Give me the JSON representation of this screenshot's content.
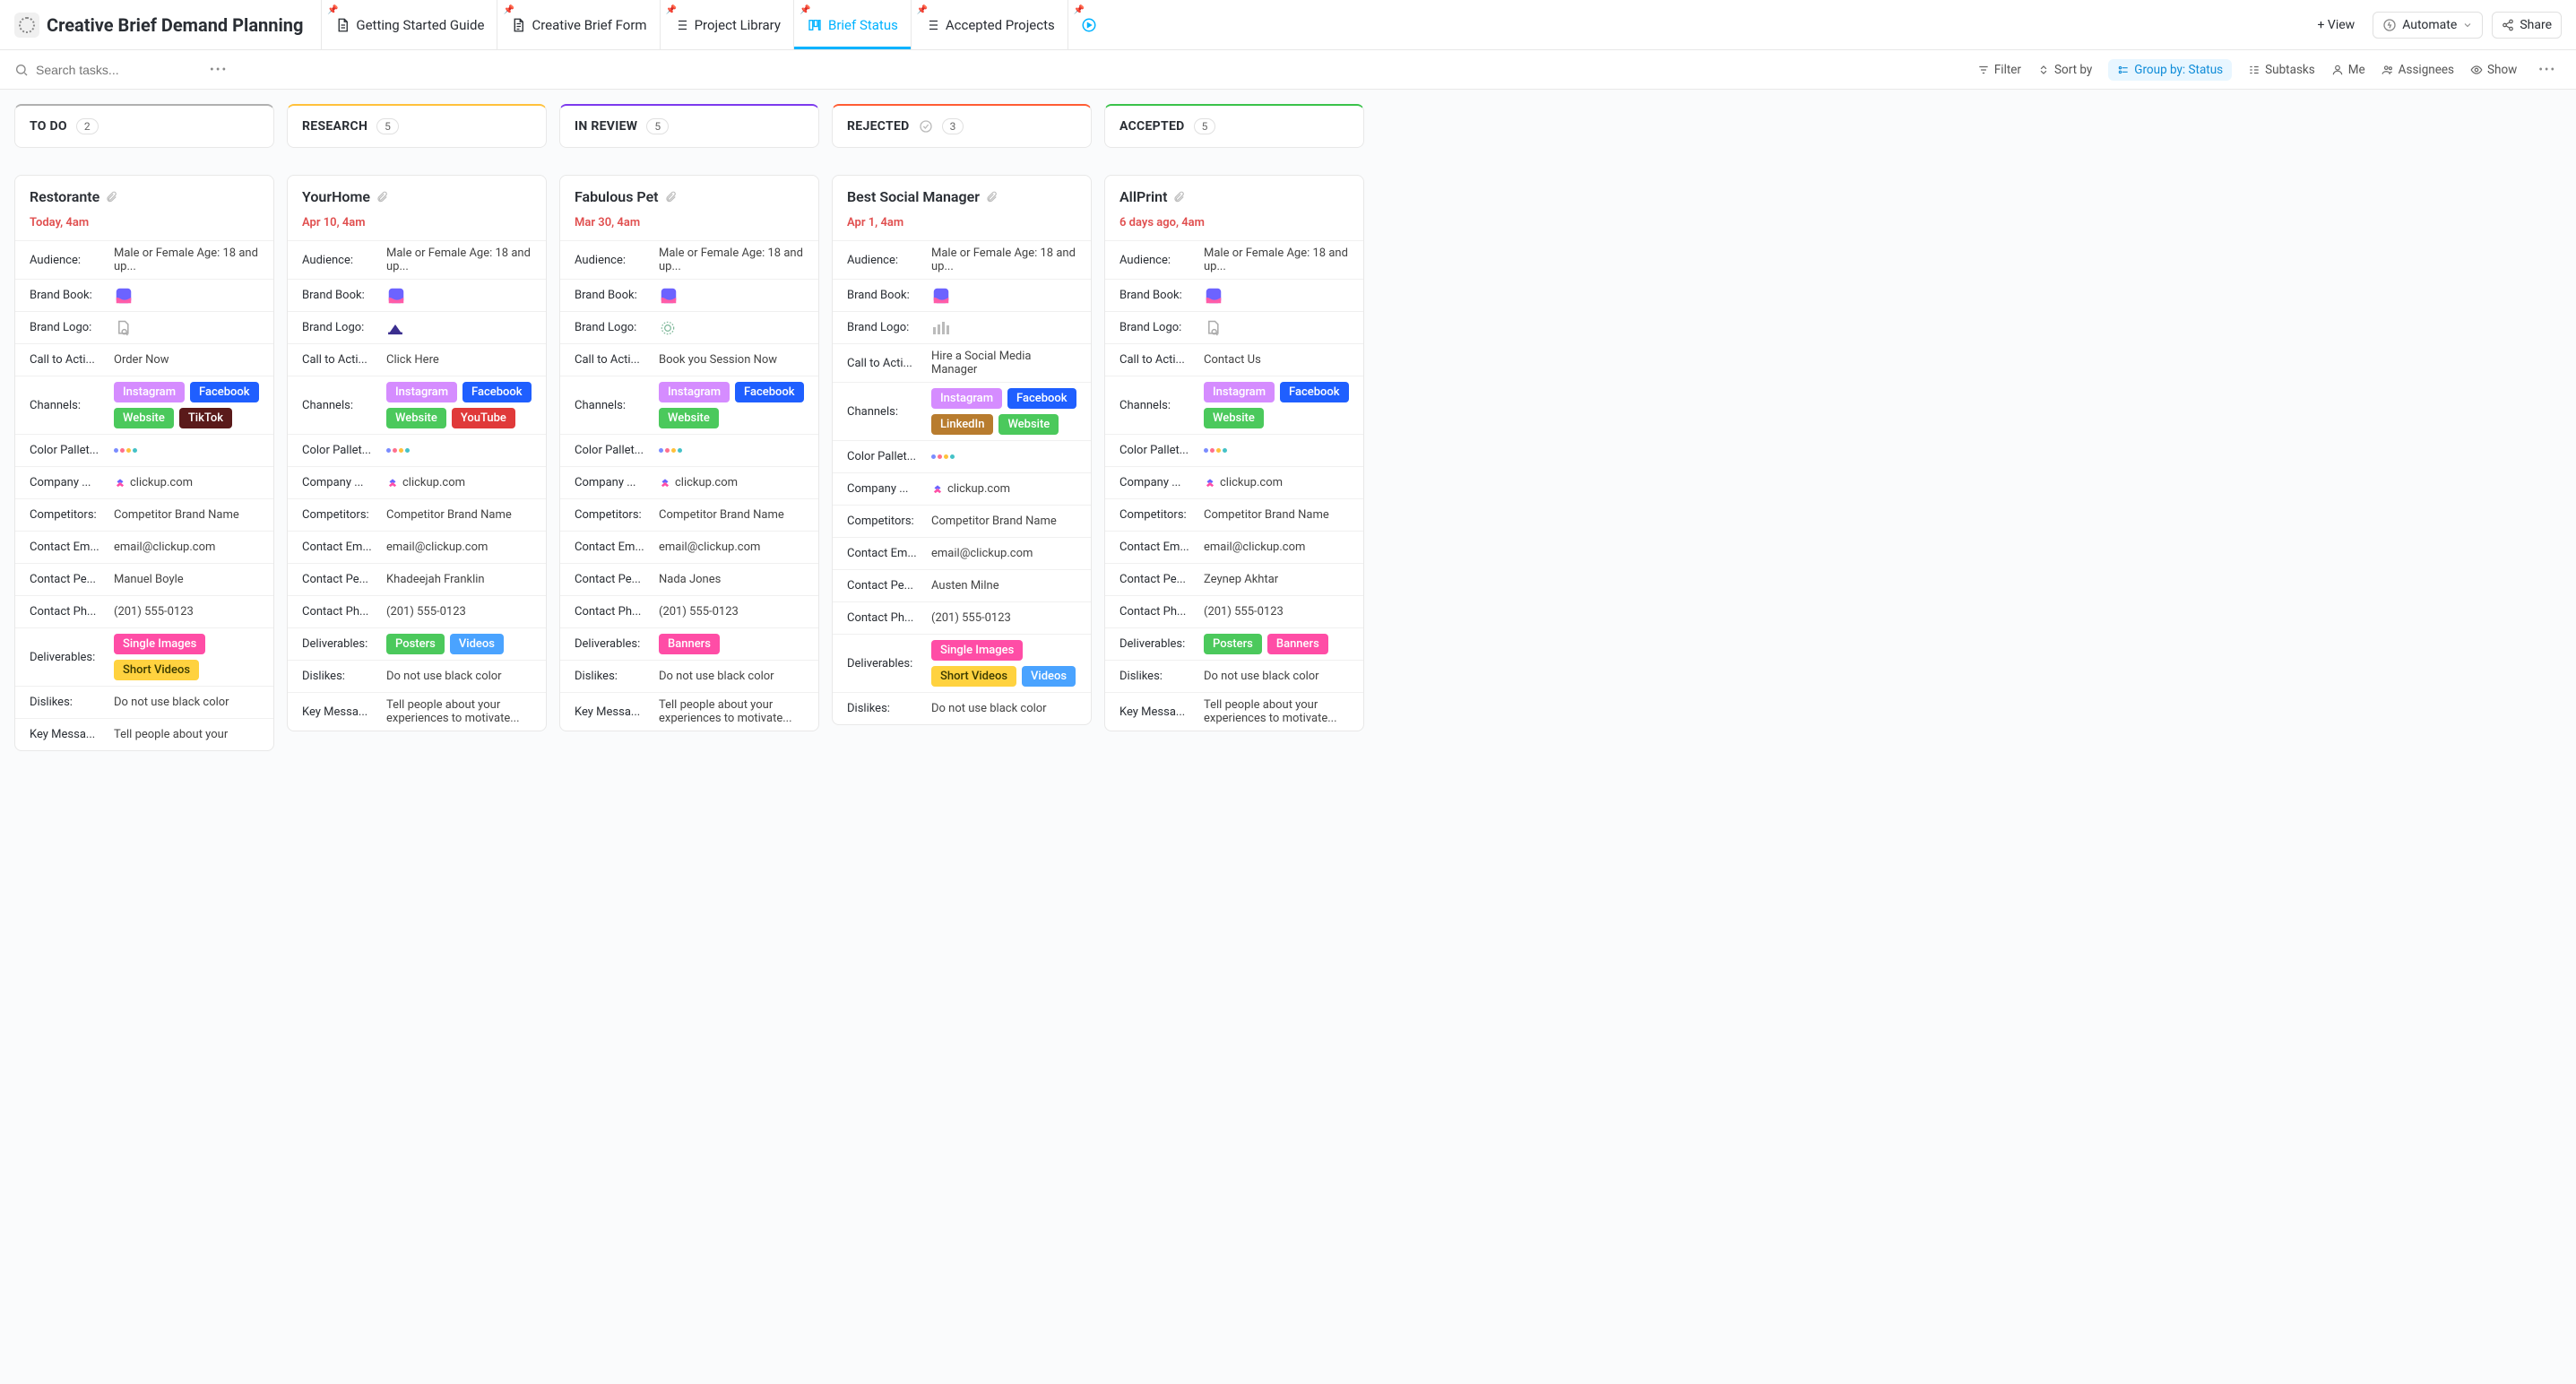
{
  "header": {
    "title": "Creative Brief Demand Planning",
    "tabs": [
      {
        "label": "Getting Started Guide",
        "icon": "doc",
        "active": false
      },
      {
        "label": "Creative Brief Form",
        "icon": "form",
        "active": false
      },
      {
        "label": "Project Library",
        "icon": "list",
        "active": false
      },
      {
        "label": "Brief Status",
        "icon": "board",
        "active": true
      },
      {
        "label": "Accepted Projects",
        "icon": "list",
        "active": false
      }
    ],
    "add_view": "+ View",
    "automate": "Automate",
    "share": "Share"
  },
  "toolbar": {
    "search_placeholder": "Search tasks...",
    "filter": "Filter",
    "sort": "Sort by",
    "group_prefix": "Group by:",
    "group_value": "Status",
    "subtasks": "Subtasks",
    "me": "Me",
    "assignees": "Assignees",
    "show": "Show"
  },
  "tag_colors": {
    "Instagram": "#d58cff",
    "Facebook": "#1f5fff",
    "Website": "#4bc95c",
    "TikTok": "#5a1a1a",
    "YouTube": "#e03a3a",
    "LinkedIn": "#b87c2e",
    "Single Images": "#ff4da6",
    "Short Videos": "#ffd23f",
    "Posters": "#4bc95c",
    "Videos": "#4aa3ff",
    "Banners": "#ff4da6"
  },
  "tag_text_colors": {
    "Short Videos": "#3a3a00"
  },
  "palette_colors": [
    "#7a8cff",
    "#ff6f8d",
    "#ffc13b",
    "#44c2c7"
  ],
  "brandbook_colors": {
    "a": "#6c63ff",
    "b": "#ff5ca8"
  },
  "field_labels": {
    "audience": "Audience:",
    "brandbook": "Brand Book:",
    "brandlogo": "Brand Logo:",
    "cta": "Call to Acti...",
    "channels": "Channels:",
    "palette": "Color Pallet...",
    "company": "Company ...",
    "competitors": "Competitors:",
    "contact_email": "Contact Em...",
    "contact_person": "Contact Pe...",
    "contact_phone": "Contact Ph...",
    "deliverables": "Deliverables:",
    "dislikes": "Dislikes:",
    "key_message": "Key Messa..."
  },
  "columns": [
    {
      "title": "TO DO",
      "count": 2,
      "color": "#b0b0b0",
      "cards": [
        {
          "title": "Restorante",
          "due": "Today, 4am",
          "audience": "Male or Female Age: 18 and up...",
          "brandlogo_icon": "doc-search",
          "cta": "Order Now",
          "channels": [
            "Instagram",
            "Facebook",
            "Website",
            "TikTok"
          ],
          "company": "clickup.com",
          "competitors": "Competitor Brand Name",
          "contact_email": "email@clickup.com",
          "contact_person": "Manuel Boyle",
          "contact_phone": "(201) 555-0123",
          "deliverables": [
            "Single Images",
            "Short Videos"
          ],
          "dislikes": "Do not use black color",
          "key_message": "Tell people about your",
          "show_key": true
        }
      ]
    },
    {
      "title": "RESEARCH",
      "count": 5,
      "color": "#ffc13b",
      "cards": [
        {
          "title": "YourHome",
          "due": "Apr 10, 4am",
          "audience": "Male or Female Age: 18 and up...",
          "brandlogo_icon": "home",
          "cta": "Click Here",
          "channels": [
            "Instagram",
            "Facebook",
            "Website",
            "YouTube"
          ],
          "company": "clickup.com",
          "competitors": "Competitor Brand Name",
          "contact_email": "email@clickup.com",
          "contact_person": "Khadeejah Franklin",
          "contact_phone": "(201) 555-0123",
          "deliverables": [
            "Posters",
            "Videos"
          ],
          "dislikes": "Do not use black color",
          "key_message": "Tell people about your experiences to motivate...",
          "show_key": true
        }
      ]
    },
    {
      "title": "IN REVIEW",
      "count": 5,
      "color": "#7c3aed",
      "cards": [
        {
          "title": "Fabulous Pet",
          "due": "Mar 30, 4am",
          "audience": "Male or Female Age: 18 and up...",
          "brandlogo_icon": "pet",
          "cta": "Book you Session Now",
          "channels": [
            "Instagram",
            "Facebook",
            "Website"
          ],
          "company": "clickup.com",
          "competitors": "Competitor Brand Name",
          "contact_email": "email@clickup.com",
          "contact_person": "Nada Jones",
          "contact_phone": "(201) 555-0123",
          "deliverables": [
            "Banners"
          ],
          "dislikes": "Do not use black color",
          "key_message": "Tell people about your experiences to motivate...",
          "show_key": true
        }
      ]
    },
    {
      "title": "REJECTED",
      "count": 3,
      "color": "#ff5c33",
      "show_check": true,
      "cards": [
        {
          "title": "Best Social Manager",
          "due": "Apr 1, 4am",
          "audience": "Male or Female Age: 18 and up...",
          "brandlogo_icon": "bars",
          "cta": "Hire a Social Media Manager",
          "channels": [
            "Instagram",
            "Facebook",
            "LinkedIn",
            "Website"
          ],
          "company": "clickup.com",
          "competitors": "Competitor Brand Name",
          "contact_email": "email@clickup.com",
          "contact_person": "Austen Milne",
          "contact_phone": "(201) 555-0123",
          "deliverables": [
            "Single Images",
            "Short Videos",
            "Videos"
          ],
          "dislikes": "Do not use black color",
          "show_key": false
        }
      ]
    },
    {
      "title": "ACCEPTED",
      "count": 5,
      "color": "#3ac24a",
      "cards": [
        {
          "title": "AllPrint",
          "due": "6 days ago, 4am",
          "audience": "Male or Female Age: 18 and up...",
          "brandlogo_icon": "doc-search",
          "cta": "Contact Us",
          "channels": [
            "Instagram",
            "Facebook",
            "Website"
          ],
          "company": "clickup.com",
          "competitors": "Competitor Brand Name",
          "contact_email": "email@clickup.com",
          "contact_person": "Zeynep Akhtar",
          "contact_phone": "(201) 555-0123",
          "deliverables": [
            "Posters",
            "Banners"
          ],
          "dislikes": "Do not use black color",
          "key_message": "Tell people about your experiences to motivate...",
          "show_key": true
        }
      ]
    }
  ]
}
